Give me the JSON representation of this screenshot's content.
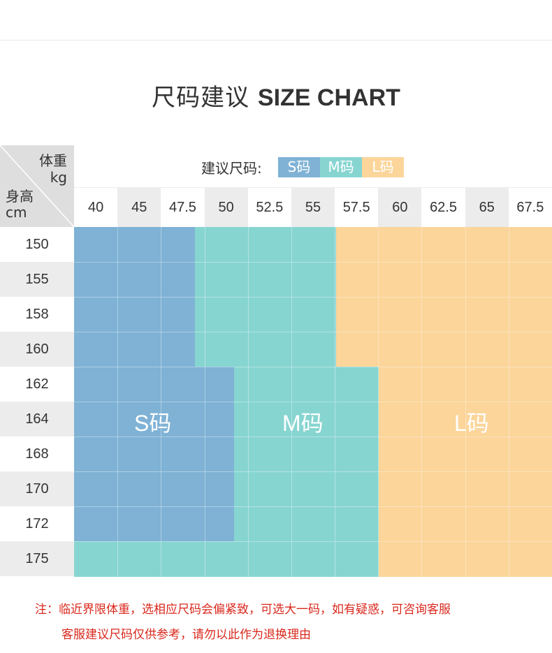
{
  "title": {
    "cn": "尺码建议",
    "en": "SIZE CHART"
  },
  "header": {
    "weight_label": "体重",
    "weight_unit": "kg",
    "height_label": "身高",
    "height_unit": "cm",
    "suggest_label": "建议尺码:"
  },
  "sizes": [
    {
      "name": "S码",
      "color": "#7fb2d5"
    },
    {
      "name": "M码",
      "color": "#87d5d1"
    },
    {
      "name": "L码",
      "color": "#fbd59a"
    }
  ],
  "weights": [
    "40",
    "45",
    "47.5",
    "50",
    "52.5",
    "55",
    "57.5",
    "60",
    "62.5",
    "65",
    "67.5"
  ],
  "heights": [
    "150",
    "155",
    "158",
    "160",
    "162",
    "164",
    "168",
    "170",
    "172",
    "175"
  ],
  "region_labels": {
    "s": "S码",
    "m": "M码",
    "l": "L码"
  },
  "note": {
    "line1": "注：临近界限体重，选相应尺码会偏紧致，可选大一码，如有疑惑，可咨询客服",
    "line2": "客服建议尺码仅供参考，请勿以此作为退换理由"
  }
}
